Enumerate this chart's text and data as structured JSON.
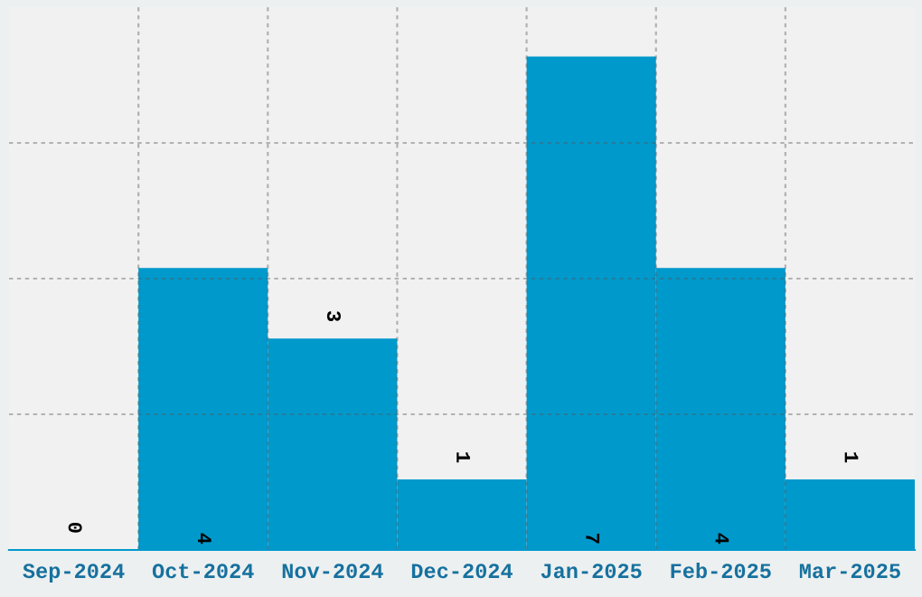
{
  "chart_data": {
    "type": "bar",
    "categories": [
      "Sep-2024",
      "Oct-2024",
      "Nov-2024",
      "Dec-2024",
      "Jan-2025",
      "Feb-2025",
      "Mar-2025"
    ],
    "values": [
      0,
      4,
      3,
      1,
      7,
      4,
      1
    ],
    "color": "#0099cc",
    "ylim": [
      0,
      7.7
    ],
    "yticks": [
      {
        "value": 1.925,
        "label": null
      },
      {
        "value": 3.85,
        "label": null
      },
      {
        "value": 5.775,
        "label": null
      }
    ],
    "tick_labels": "x",
    "data_labels": true,
    "grid": true
  }
}
